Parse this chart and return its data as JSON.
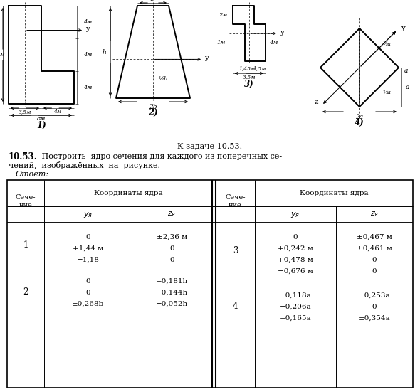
{
  "bg_color": "#ffffff",
  "caption": "К задаче 10.53.",
  "problem_bold": "10.53.",
  "problem_line1": " Построить  ядро сечения для каждого из поперечных се-",
  "problem_line2": "чений,  изображённых  на  рисунке.",
  "answer": "Ответ:",
  "sec_left": "Сече-\nние",
  "sec_right": "Сече-\nние",
  "header": "Координаты ядра",
  "s1_rows": [
    [
      "0",
      "±2,36 м"
    ],
    [
      "+1,44 м",
      "0"
    ],
    [
      "−1,18",
      "0"
    ]
  ],
  "s2_rows": [
    [
      "0",
      "+0,181h"
    ],
    [
      "0",
      "−0,144h"
    ],
    [
      "±0,268b",
      "−0,052h"
    ]
  ],
  "s3_rows": [
    [
      "0",
      "±0,467 м"
    ],
    [
      "+0,242 м",
      "±0,461 м"
    ],
    [
      "+0,478 м",
      "0"
    ],
    [
      "−0,676 м",
      "0"
    ]
  ],
  "s4_rows": [
    [
      "−0,118a",
      "±0,253a"
    ],
    [
      "−0,206a",
      "0"
    ],
    [
      "+0,165a",
      "±0,354a"
    ]
  ]
}
